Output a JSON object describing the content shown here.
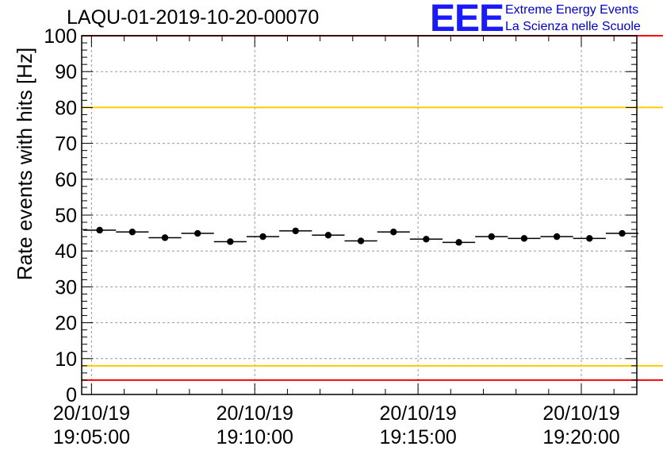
{
  "header": {
    "title": "LAQU-01-2019-10-20-00070",
    "logo_text": "EEE",
    "logo_line1": "Extreme Energy Events",
    "logo_line2": "La Scienza nelle Scuole"
  },
  "colors": {
    "data": "#000000",
    "grid": "#999999",
    "red_line": "#ff0000",
    "yellow_line": "#ffcc00",
    "logo": "#1a1aff"
  },
  "chart_data": {
    "type": "scatter",
    "title": "LAQU-01-2019-10-20-00070",
    "xlabel": "",
    "ylabel": "Rate events with hits [Hz]",
    "ylim": [
      0,
      100
    ],
    "yticks": [
      0,
      10,
      20,
      30,
      40,
      50,
      60,
      70,
      80,
      90,
      100
    ],
    "xlim_minutes": [
      -0.3,
      16.7
    ],
    "xticks": [
      {
        "minute": 0,
        "date": "20/10/19",
        "time": "19:05:00"
      },
      {
        "minute": 5,
        "date": "20/10/19",
        "time": "19:10:00"
      },
      {
        "minute": 10,
        "date": "20/10/19",
        "time": "19:15:00"
      },
      {
        "minute": 15,
        "date": "20/10/19",
        "time": "19:20:00"
      }
    ],
    "bin_width_minutes": 1,
    "points": [
      {
        "x": 0.25,
        "y": 45.8
      },
      {
        "x": 1.25,
        "y": 45.3
      },
      {
        "x": 2.25,
        "y": 43.7
      },
      {
        "x": 3.25,
        "y": 44.9
      },
      {
        "x": 4.25,
        "y": 42.6
      },
      {
        "x": 5.25,
        "y": 44.0
      },
      {
        "x": 6.25,
        "y": 45.6
      },
      {
        "x": 7.25,
        "y": 44.4
      },
      {
        "x": 8.25,
        "y": 42.8
      },
      {
        "x": 9.25,
        "y": 45.3
      },
      {
        "x": 10.25,
        "y": 43.3
      },
      {
        "x": 11.25,
        "y": 42.4
      },
      {
        "x": 12.25,
        "y": 44.0
      },
      {
        "x": 13.25,
        "y": 43.5
      },
      {
        "x": 14.25,
        "y": 44.0
      },
      {
        "x": 15.25,
        "y": 43.5
      },
      {
        "x": 16.25,
        "y": 44.9
      }
    ],
    "reference_lines": [
      {
        "y": 100,
        "color": "red"
      },
      {
        "y": 80,
        "color": "yellow"
      },
      {
        "y": 8,
        "color": "yellow"
      },
      {
        "y": 4,
        "color": "red"
      }
    ],
    "grid": true
  }
}
